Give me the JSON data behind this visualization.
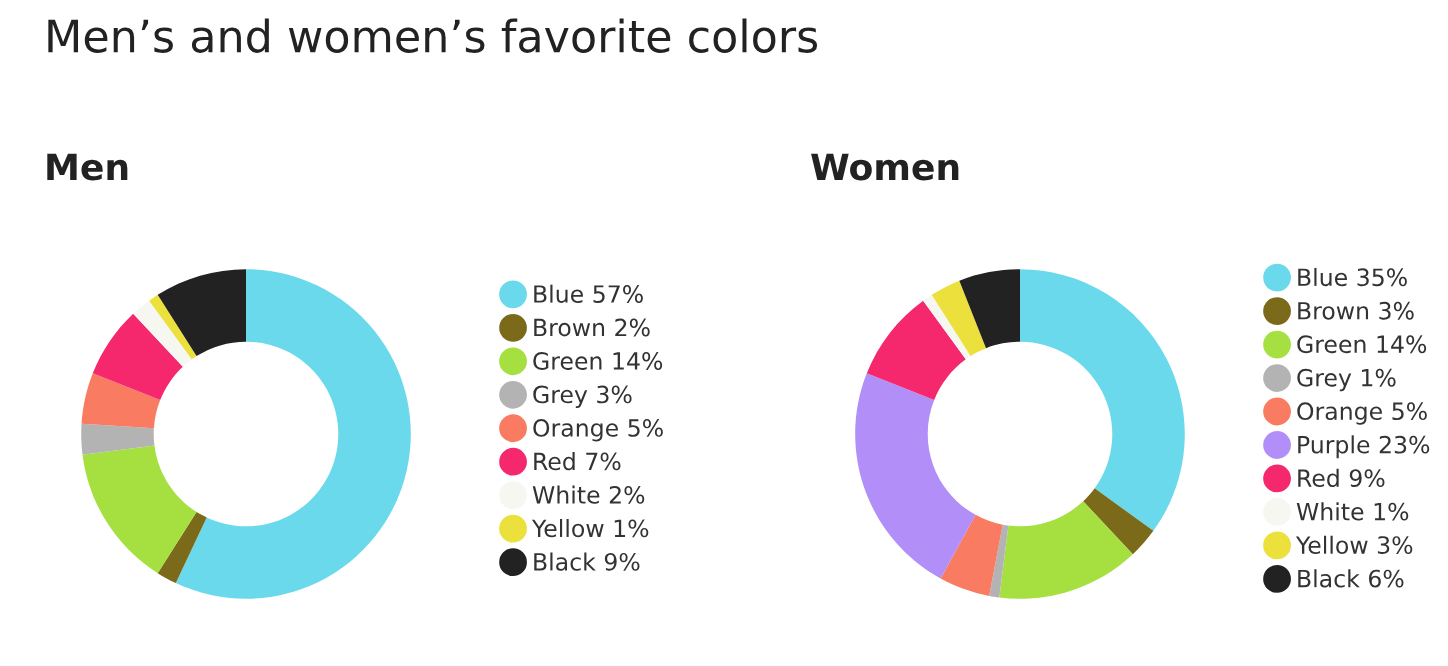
{
  "chart_data": [
    {
      "type": "donut",
      "title": "Men’s and women’s favorite colors",
      "subtitle": "Men",
      "legend": "right",
      "categories": [
        "Blue",
        "Brown",
        "Green",
        "Grey",
        "Orange",
        "Red",
        "White",
        "Yellow",
        "Black"
      ],
      "values": [
        57,
        2,
        14,
        3,
        5,
        7,
        2,
        1,
        9
      ],
      "value_labels": [
        "57%",
        "2%",
        "14%",
        "3%",
        "5%",
        "7%",
        "2%",
        "1%",
        "9%"
      ],
      "colors": [
        "#6ad9ec",
        "#7a6a1a",
        "#a6e040",
        "#b3b3b3",
        "#f97b62",
        "#f5286e",
        "#f7f7f2",
        "#ece03c",
        "#222222"
      ]
    },
    {
      "type": "donut",
      "subtitle": "Women",
      "legend": "right",
      "categories": [
        "Blue",
        "Brown",
        "Green",
        "Grey",
        "Orange",
        "Purple",
        "Red",
        "White",
        "Yellow",
        "Black"
      ],
      "values": [
        35,
        3,
        14,
        1,
        5,
        23,
        9,
        1,
        3,
        6
      ],
      "value_labels": [
        "35%",
        "3%",
        "14%",
        "1%",
        "5%",
        "23%",
        "9%",
        "1%",
        "3%",
        "6%"
      ],
      "colors": [
        "#6ad9ec",
        "#7a6a1a",
        "#a6e040",
        "#b3b3b3",
        "#f97b62",
        "#b18ef8",
        "#f5286e",
        "#f7f7f2",
        "#ece03c",
        "#222222"
      ]
    }
  ]
}
